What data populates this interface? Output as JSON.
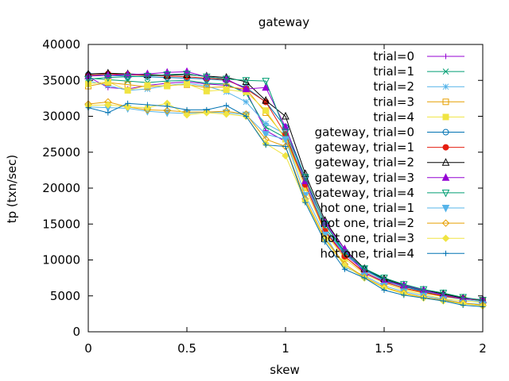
{
  "chart_data": {
    "type": "line",
    "title": "gateway",
    "xlabel": "skew",
    "ylabel": "tp (txn/sec)",
    "xlim": [
      0,
      2
    ],
    "ylim": [
      0,
      40000
    ],
    "xticks": [
      0,
      0.5,
      1,
      1.5,
      2
    ],
    "xtick_labels": [
      "0",
      "0.5",
      "1",
      "1.5",
      "2"
    ],
    "yticks": [
      0,
      5000,
      10000,
      15000,
      20000,
      25000,
      30000,
      35000,
      40000
    ],
    "ytick_labels": [
      "0",
      "5000",
      "10000",
      "15000",
      "20000",
      "25000",
      "30000",
      "35000",
      "40000"
    ],
    "grid": false,
    "legend_position": "top-right",
    "x": [
      0,
      0.1,
      0.2,
      0.3,
      0.4,
      0.5,
      0.6,
      0.7,
      0.8,
      0.9,
      1.0,
      1.1,
      1.2,
      1.3,
      1.4,
      1.5,
      1.6,
      1.7,
      1.8,
      1.9,
      2.0
    ],
    "series": [
      {
        "name": "trial=0",
        "color": "#9400d3",
        "marker": "plus",
        "values": [
          35500,
          34000,
          33800,
          34300,
          34600,
          34800,
          34500,
          34300,
          33500,
          28000,
          26500,
          21000,
          14000,
          10800,
          8500,
          7200,
          6300,
          5600,
          5000,
          4600,
          4500
        ]
      },
      {
        "name": "trial=1",
        "color": "#009e73",
        "marker": "x",
        "values": [
          35300,
          35100,
          34900,
          34700,
          34900,
          35000,
          34600,
          34500,
          33200,
          28500,
          27000,
          21000,
          14500,
          11000,
          8800,
          7300,
          6400,
          5700,
          5200,
          4700,
          4300
        ]
      },
      {
        "name": "trial=2",
        "color": "#56b4e9",
        "marker": "star",
        "values": [
          34900,
          34300,
          33600,
          33800,
          34300,
          34600,
          34200,
          33400,
          32000,
          29000,
          27500,
          21000,
          14200,
          10900,
          8600,
          7100,
          6100,
          5500,
          4900,
          4500,
          4200
        ]
      },
      {
        "name": "trial=3",
        "color": "#e69f00",
        "marker": "open-square",
        "values": [
          34200,
          34700,
          34400,
          34100,
          34300,
          34400,
          34000,
          34100,
          33800,
          30500,
          27000,
          20500,
          14000,
          10500,
          8300,
          7000,
          6000,
          5400,
          4900,
          4600,
          4400
        ]
      },
      {
        "name": "trial=4",
        "color": "#f0e442",
        "marker": "filled-square",
        "values": [
          34500,
          34800,
          33600,
          34300,
          34200,
          34500,
          33500,
          33700,
          33400,
          30800,
          26800,
          20000,
          13800,
          10200,
          8000,
          6800,
          5800,
          5200,
          4600,
          4300,
          4100
        ]
      },
      {
        "name": "gateway, trial=0",
        "color": "#0072b2",
        "marker": "open-circle",
        "values": [
          35800,
          35700,
          35600,
          35500,
          35400,
          35300,
          35200,
          35000,
          34000,
          32000,
          28500,
          21500,
          15000,
          11200,
          8700,
          7200,
          6300,
          5600,
          5000,
          4600,
          4400
        ]
      },
      {
        "name": "gateway, trial=1",
        "color": "#e51e10",
        "marker": "filled-circle",
        "values": [
          35700,
          35900,
          35800,
          35700,
          35600,
          35500,
          35300,
          35100,
          33800,
          32000,
          27500,
          20500,
          14000,
          10500,
          8200,
          6900,
          6100,
          5500,
          5000,
          4600,
          4400
        ]
      },
      {
        "name": "gateway, trial=2",
        "color": "#000000",
        "marker": "open-triangle",
        "values": [
          35900,
          36000,
          35900,
          35800,
          35700,
          35800,
          35600,
          35400,
          34800,
          32200,
          30000,
          22000,
          15500,
          11500,
          8800,
          7400,
          6500,
          5800,
          5300,
          4700,
          4400
        ]
      },
      {
        "name": "gateway, trial=3",
        "color": "#9400d3",
        "marker": "filled-triangle",
        "values": [
          35600,
          35700,
          35800,
          35900,
          36100,
          36200,
          35500,
          35200,
          33800,
          34000,
          28500,
          21000,
          15200,
          11500,
          8200,
          7000,
          6500,
          5800,
          5100,
          4600,
          4500
        ]
      },
      {
        "name": "gateway, trial=4",
        "color": "#009e73",
        "marker": "open-inverted-triangle",
        "values": [
          35200,
          35400,
          35500,
          35600,
          35800,
          35900,
          35500,
          35200,
          35000,
          34900,
          27800,
          21500,
          15000,
          11000,
          8800,
          7500,
          6600,
          5900,
          5400,
          4800,
          4400
        ]
      },
      {
        "name": "hot one, trial=1",
        "color": "#56b4e9",
        "marker": "filled-inverted-triangle",
        "values": [
          31300,
          31200,
          31100,
          30700,
          30500,
          30400,
          30600,
          30500,
          30200,
          27500,
          26800,
          19000,
          13500,
          9000,
          7800,
          6400,
          5600,
          5000,
          4500,
          4000,
          3800
        ]
      },
      {
        "name": "hot one, trial=2",
        "color": "#e69f00",
        "marker": "open-diamond",
        "values": [
          31700,
          32000,
          31300,
          30900,
          30800,
          30600,
          30600,
          30700,
          30300,
          26800,
          25800,
          18500,
          13000,
          9400,
          7600,
          6200,
          5400,
          4800,
          4400,
          4000,
          3700
        ]
      },
      {
        "name": "hot one, trial=3",
        "color": "#f0e442",
        "marker": "filled-diamond",
        "values": [
          31500,
          31600,
          31300,
          31200,
          31800,
          30200,
          30500,
          30300,
          30000,
          26200,
          24500,
          18200,
          12800,
          9200,
          7500,
          6100,
          5300,
          4700,
          4300,
          3900,
          3600
        ]
      },
      {
        "name": "hot one, trial=4",
        "color": "#0072b2",
        "marker": "plus",
        "values": [
          31200,
          30500,
          31800,
          31600,
          31400,
          30900,
          30900,
          31500,
          30000,
          26000,
          25800,
          18000,
          12500,
          8700,
          7500,
          5800,
          5100,
          4700,
          4300,
          3700,
          3500
        ]
      }
    ]
  }
}
